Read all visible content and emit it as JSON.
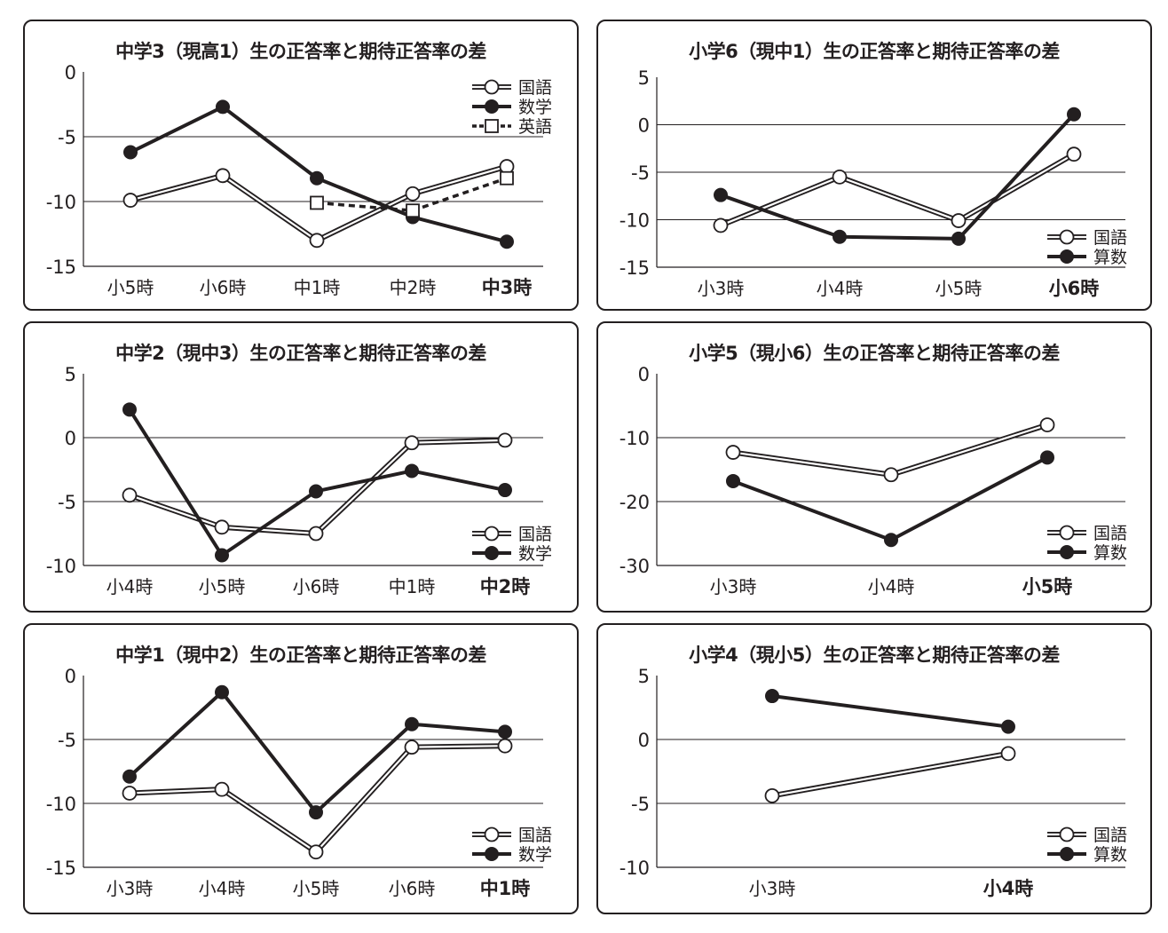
{
  "colors": {
    "ink": "#231f20",
    "grid": "#231f20",
    "background": "#ffffff",
    "marker_open": "#ffffff",
    "marker_filled": "#231f20"
  },
  "chart_data": [
    {
      "type": "line",
      "title": "中学3（現高1）生の正答率と期待正答率の差",
      "categories": [
        "小5時",
        "小6時",
        "中1時",
        "中2時",
        "中3時"
      ],
      "highlight_category": "中3時",
      "yticks": [
        0,
        -5,
        -10,
        -15
      ],
      "ylim": [
        -15,
        0
      ],
      "xlabel": "",
      "ylabel": "",
      "legend_position": "top-right",
      "series": [
        {
          "name": "国語",
          "style": "double-open",
          "values": [
            -9.9,
            -8.0,
            -13.0,
            -9.4,
            -7.3
          ]
        },
        {
          "name": "数学",
          "style": "solid-filled",
          "values": [
            -6.2,
            -2.7,
            -8.2,
            -11.2,
            -13.1
          ]
        },
        {
          "name": "英語",
          "style": "dashed-square",
          "values": [
            null,
            null,
            -10.1,
            -10.7,
            -8.2
          ]
        }
      ]
    },
    {
      "type": "line",
      "title": "小学6（現中1）生の正答率と期待正答率の差",
      "categories": [
        "小3時",
        "小4時",
        "小5時",
        "小6時"
      ],
      "highlight_category": "小6時",
      "yticks": [
        5,
        0,
        -5,
        -10,
        -15
      ],
      "ylim": [
        -15,
        5
      ],
      "xlabel": "",
      "ylabel": "",
      "legend_position": "bottom-right",
      "series": [
        {
          "name": "国語",
          "style": "double-open",
          "values": [
            -10.6,
            -5.5,
            -10.1,
            -3.1
          ]
        },
        {
          "name": "算数",
          "style": "solid-filled",
          "values": [
            -7.4,
            -11.8,
            -12.0,
            1.1
          ]
        }
      ]
    },
    {
      "type": "line",
      "title": "中学2（現中3）生の正答率と期待正答率の差",
      "categories": [
        "小4時",
        "小5時",
        "小6時",
        "中1時",
        "中2時"
      ],
      "highlight_category": "中2時",
      "yticks": [
        5,
        0,
        -5,
        -10
      ],
      "ylim": [
        -10,
        5
      ],
      "xlabel": "",
      "ylabel": "",
      "legend_position": "bottom-right",
      "series": [
        {
          "name": "国語",
          "style": "double-open",
          "values": [
            -4.5,
            -7.0,
            -7.5,
            -0.4,
            -0.2
          ]
        },
        {
          "name": "数学",
          "style": "solid-filled",
          "values": [
            2.2,
            -9.2,
            -4.2,
            -2.6,
            -4.1
          ]
        }
      ]
    },
    {
      "type": "line",
      "title": "小学5（現小6）生の正答率と期待正答率の差",
      "categories": [
        "小3時",
        "小4時",
        "小5時"
      ],
      "highlight_category": "小5時",
      "yticks": [
        0,
        -10,
        -20,
        -30
      ],
      "ylim": [
        -30,
        0
      ],
      "xlabel": "",
      "ylabel": "",
      "legend_position": "bottom-right",
      "series": [
        {
          "name": "国語",
          "style": "double-open",
          "values": [
            -12.3,
            -15.8,
            -8.0
          ]
        },
        {
          "name": "算数",
          "style": "solid-filled",
          "values": [
            -16.8,
            -26.0,
            -13.1
          ]
        }
      ]
    },
    {
      "type": "line",
      "title": "中学1（現中2）生の正答率と期待正答率の差",
      "categories": [
        "小3時",
        "小4時",
        "小5時",
        "小6時",
        "中1時"
      ],
      "highlight_category": "中1時",
      "yticks": [
        0,
        -5,
        -10,
        -15
      ],
      "ylim": [
        -15,
        0
      ],
      "xlabel": "",
      "ylabel": "",
      "legend_position": "bottom-right",
      "series": [
        {
          "name": "国語",
          "style": "double-open",
          "values": [
            -9.2,
            -8.9,
            -13.8,
            -5.6,
            -5.5
          ]
        },
        {
          "name": "数学",
          "style": "solid-filled",
          "values": [
            -7.9,
            -1.3,
            -10.7,
            -3.8,
            -4.4
          ]
        }
      ]
    },
    {
      "type": "line",
      "title": "小学4（現小5）生の正答率と期待正答率の差",
      "categories": [
        "小3時",
        "小4時"
      ],
      "highlight_category": "小4時",
      "yticks": [
        5,
        0,
        -5,
        -10
      ],
      "ylim": [
        -10,
        5
      ],
      "xlabel": "",
      "ylabel": "",
      "legend_position": "bottom-right",
      "series": [
        {
          "name": "国語",
          "style": "double-open",
          "values": [
            -4.4,
            -1.1
          ]
        },
        {
          "name": "算数",
          "style": "solid-filled",
          "values": [
            3.4,
            1.0
          ]
        }
      ]
    }
  ]
}
